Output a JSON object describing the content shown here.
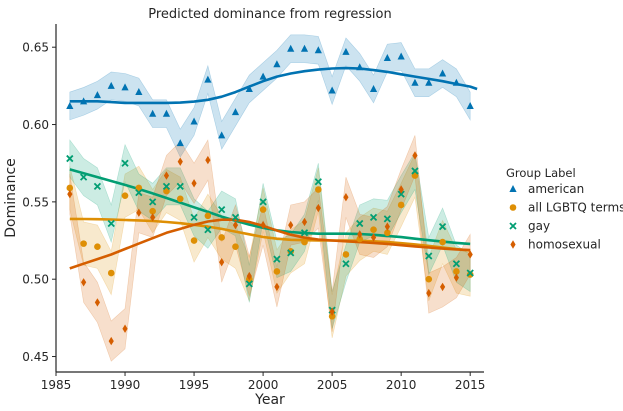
{
  "chart_data": {
    "type": "scatter",
    "title": "Predicted dominance from regression",
    "xlabel": "Year",
    "ylabel": "Dominance",
    "xlim": [
      1985,
      2016
    ],
    "ylim": [
      0.44,
      0.665
    ],
    "xticks": [
      1985,
      1990,
      1995,
      2000,
      2005,
      2010,
      2015
    ],
    "yticks": [
      0.45,
      0.5,
      0.55,
      0.6,
      0.65
    ],
    "ytick_labels": [
      "0.45",
      "0.50",
      "0.55",
      "0.60",
      "0.65"
    ],
    "legend": {
      "title": "Group Label",
      "position": "right"
    },
    "series": [
      {
        "name": "american",
        "marker": "triangle",
        "color": "#0173b2",
        "x": [
          1986,
          1987,
          1988,
          1989,
          1990,
          1991,
          1992,
          1993,
          1994,
          1995,
          1996,
          1997,
          1998,
          1999,
          2000,
          2001,
          2002,
          2003,
          2004,
          2005,
          2006,
          2007,
          2008,
          2009,
          2010,
          2011,
          2012,
          2013,
          2014,
          2015
        ],
        "y": [
          0.612,
          0.615,
          0.619,
          0.625,
          0.624,
          0.621,
          0.607,
          0.607,
          0.588,
          0.602,
          0.629,
          0.593,
          0.608,
          0.623,
          0.631,
          0.639,
          0.649,
          0.649,
          0.648,
          0.622,
          0.647,
          0.637,
          0.623,
          0.643,
          0.644,
          0.627,
          0.627,
          0.633,
          0.627,
          0.612
        ],
        "trend": [
          0.615,
          0.615,
          0.615,
          0.6145,
          0.614,
          0.614,
          0.614,
          0.614,
          0.6142,
          0.6148,
          0.616,
          0.618,
          0.621,
          0.6245,
          0.628,
          0.631,
          0.633,
          0.6345,
          0.6355,
          0.6362,
          0.6365,
          0.6362,
          0.6352,
          0.634,
          0.6325,
          0.631,
          0.6295,
          0.628,
          0.6262,
          0.6245,
          0.623
        ],
        "trend_x": [
          1986,
          1987,
          1988,
          1989,
          1990,
          1991,
          1992,
          1993,
          1994,
          1995,
          1996,
          1997,
          1998,
          1999,
          2000,
          2001,
          2002,
          2003,
          2004,
          2005,
          2006,
          2007,
          2008,
          2009,
          2010,
          2011,
          2012,
          2013,
          2014,
          2015,
          2015.5
        ]
      },
      {
        "name": "all LGBTQ terms",
        "marker": "circle",
        "color": "#de8f05",
        "x": [
          1986,
          1987,
          1988,
          1989,
          1990,
          1991,
          1992,
          1993,
          1994,
          1995,
          1996,
          1997,
          1998,
          1999,
          2000,
          2001,
          2002,
          2003,
          2004,
          2005,
          2006,
          2007,
          2008,
          2009,
          2010,
          2011,
          2012,
          2013,
          2014,
          2015
        ],
        "y": [
          0.559,
          0.523,
          0.521,
          0.504,
          0.554,
          0.559,
          0.544,
          0.557,
          0.552,
          0.525,
          0.541,
          0.527,
          0.521,
          0.5,
          0.545,
          0.505,
          0.518,
          0.524,
          0.558,
          0.476,
          0.516,
          0.526,
          0.532,
          0.53,
          0.548,
          0.567,
          0.5,
          0.524,
          0.505,
          0.503
        ],
        "trend": [
          0.539,
          0.5389,
          0.5388,
          0.5386,
          0.5383,
          0.538,
          0.5376,
          0.537,
          0.5362,
          0.5352,
          0.534,
          0.5325,
          0.5308,
          0.529,
          0.5273,
          0.5262,
          0.5255,
          0.5252,
          0.525,
          0.525,
          0.525,
          0.5248,
          0.5245,
          0.524,
          0.5233,
          0.5225,
          0.5215,
          0.5205,
          0.5195,
          0.5185
        ],
        "trend_x": [
          1986,
          1987,
          1988,
          1989,
          1990,
          1991,
          1992,
          1993,
          1994,
          1995,
          1996,
          1997,
          1998,
          1999,
          2000,
          2001,
          2002,
          2003,
          2004,
          2005,
          2006,
          2007,
          2008,
          2009,
          2010,
          2011,
          2012,
          2013,
          2014,
          2015
        ]
      },
      {
        "name": "gay",
        "marker": "x",
        "color": "#029e73",
        "x": [
          1986,
          1987,
          1988,
          1989,
          1990,
          1991,
          1992,
          1993,
          1994,
          1995,
          1996,
          1997,
          1998,
          1999,
          2000,
          2001,
          2002,
          2003,
          2004,
          2005,
          2006,
          2007,
          2008,
          2009,
          2010,
          2011,
          2012,
          2013,
          2014,
          2015
        ],
        "y": [
          0.578,
          0.566,
          0.56,
          0.536,
          0.575,
          0.556,
          0.55,
          0.56,
          0.56,
          0.54,
          0.532,
          0.545,
          0.54,
          0.497,
          0.55,
          0.513,
          0.517,
          0.53,
          0.563,
          0.48,
          0.51,
          0.536,
          0.54,
          0.539,
          0.555,
          0.57,
          0.515,
          0.534,
          0.51,
          0.504
        ],
        "trend": [
          0.571,
          0.5685,
          0.566,
          0.5635,
          0.561,
          0.5583,
          0.5555,
          0.5525,
          0.5495,
          0.5465,
          0.5435,
          0.5405,
          0.5378,
          0.5353,
          0.5332,
          0.5316,
          0.5305,
          0.5298,
          0.5294,
          0.5294,
          0.5294,
          0.5292,
          0.5287,
          0.528,
          0.5272,
          0.5262,
          0.5252,
          0.5243,
          0.5235,
          0.5228
        ],
        "trend_x": [
          1986,
          1987,
          1988,
          1989,
          1990,
          1991,
          1992,
          1993,
          1994,
          1995,
          1996,
          1997,
          1998,
          1999,
          2000,
          2001,
          2002,
          2003,
          2004,
          2005,
          2006,
          2007,
          2008,
          2009,
          2010,
          2011,
          2012,
          2013,
          2014,
          2015
        ]
      },
      {
        "name": "homosexual",
        "marker": "diamond",
        "color": "#d55e00",
        "x": [
          1986,
          1987,
          1988,
          1989,
          1990,
          1991,
          1992,
          1993,
          1994,
          1995,
          1996,
          1997,
          1998,
          1999,
          2000,
          2001,
          2002,
          2003,
          2004,
          2005,
          2006,
          2007,
          2008,
          2009,
          2010,
          2011,
          2012,
          2013,
          2014,
          2015
        ],
        "y": [
          0.555,
          0.498,
          0.485,
          0.46,
          0.468,
          0.543,
          0.54,
          0.567,
          0.576,
          0.562,
          0.577,
          0.511,
          0.535,
          0.502,
          0.535,
          0.495,
          0.535,
          0.537,
          0.546,
          0.479,
          0.553,
          0.529,
          0.527,
          0.534,
          0.558,
          0.58,
          0.491,
          0.495,
          0.501,
          0.516
        ],
        "trend": [
          0.507,
          0.51,
          0.513,
          0.516,
          0.5195,
          0.523,
          0.5265,
          0.53,
          0.5325,
          0.5352,
          0.5373,
          0.5385,
          0.5385,
          0.537,
          0.5345,
          0.5315,
          0.5288,
          0.5268,
          0.5257,
          0.525,
          0.5245,
          0.524,
          0.5235,
          0.5228,
          0.522,
          0.5212,
          0.5205,
          0.5198,
          0.5192,
          0.5188
        ],
        "trend_x": [
          1986,
          1987,
          1988,
          1989,
          1990,
          1991,
          1992,
          1993,
          1994,
          1995,
          1996,
          1997,
          1998,
          1999,
          2000,
          2001,
          2002,
          2003,
          2004,
          2005,
          2006,
          2007,
          2008,
          2009,
          2010,
          2011,
          2012,
          2013,
          2014,
          2015
        ]
      }
    ]
  }
}
